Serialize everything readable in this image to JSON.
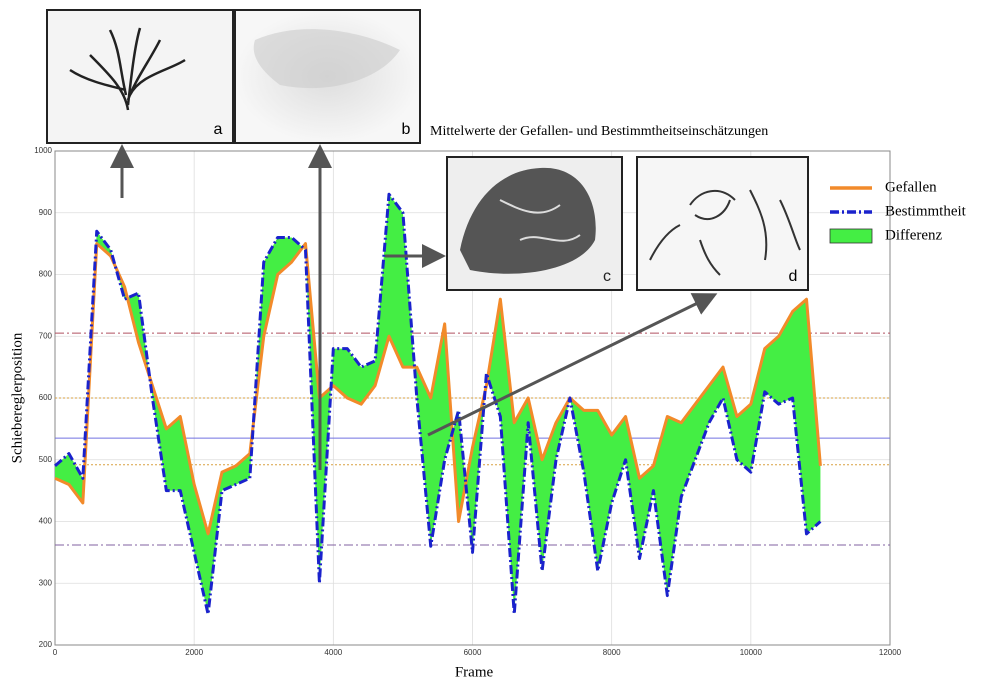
{
  "chart_data": {
    "type": "line",
    "title": "Mittelwerte der Gefallen- und Bestimmtheitseinschätzungen",
    "x_label": "Frame",
    "y_label": "Schiebereglerposition",
    "x": [
      0,
      200,
      400,
      600,
      800,
      1000,
      1200,
      1400,
      1600,
      1800,
      2000,
      2200,
      2400,
      2600,
      2800,
      3000,
      3200,
      3400,
      3600,
      3800,
      4000,
      4200,
      4400,
      4600,
      4800,
      5000,
      5200,
      5400,
      5600,
      5800,
      6000,
      6200,
      6400,
      6600,
      6800,
      7000,
      7200,
      7400,
      7600,
      7800,
      8000,
      8200,
      8400,
      8600,
      8800,
      9000,
      9200,
      9400,
      9600,
      9800,
      10000,
      10200,
      10400,
      10600,
      10800,
      11000
    ],
    "series": [
      {
        "name": "Gefallen",
        "color": "#f28a2a",
        "style": "solid",
        "values": [
          470,
          460,
          430,
          850,
          830,
          780,
          690,
          620,
          550,
          570,
          460,
          380,
          480,
          490,
          510,
          700,
          800,
          820,
          850,
          600,
          620,
          600,
          590,
          620,
          700,
          650,
          650,
          600,
          720,
          400,
          520,
          620,
          760,
          560,
          600,
          500,
          560,
          600,
          580,
          580,
          540,
          570,
          470,
          490,
          570,
          560,
          590,
          620,
          650,
          570,
          590,
          680,
          700,
          740,
          760,
          490
        ]
      },
      {
        "name": "Bestimmtheit",
        "color": "#1a22cc",
        "style": "dashdot",
        "values": [
          490,
          510,
          470,
          870,
          840,
          760,
          770,
          600,
          450,
          450,
          350,
          250,
          450,
          460,
          470,
          820,
          860,
          860,
          840,
          300,
          680,
          680,
          650,
          660,
          930,
          900,
          600,
          360,
          500,
          580,
          350,
          640,
          570,
          250,
          560,
          320,
          500,
          600,
          480,
          320,
          430,
          500,
          340,
          450,
          280,
          440,
          500,
          560,
          600,
          500,
          480,
          610,
          590,
          600,
          380,
          400
        ]
      }
    ],
    "fill": {
      "name": "Differenz",
      "color": "#44ee44"
    },
    "reference_lines": [
      {
        "value": 705,
        "color": "#b05060",
        "style": "dashdot"
      },
      {
        "value": 600,
        "color": "#d8a040",
        "style": "dotted"
      },
      {
        "value": 535,
        "color": "#7070e0",
        "style": "solid"
      },
      {
        "value": 492,
        "color": "#d8a040",
        "style": "dotted"
      },
      {
        "value": 362,
        "color": "#8060a0",
        "style": "dashdot"
      }
    ],
    "xlim": [
      0,
      12000
    ],
    "xticks": [
      0,
      2000,
      4000,
      6000,
      8000,
      10000,
      12000
    ],
    "ylim": [
      200,
      1000
    ],
    "yticks": [
      200,
      300,
      400,
      500,
      600,
      700,
      800,
      900,
      1000
    ],
    "grid": true,
    "legend": "upper right"
  },
  "insets": [
    {
      "label": "a"
    },
    {
      "label": "b"
    },
    {
      "label": "c"
    },
    {
      "label": "d"
    }
  ]
}
